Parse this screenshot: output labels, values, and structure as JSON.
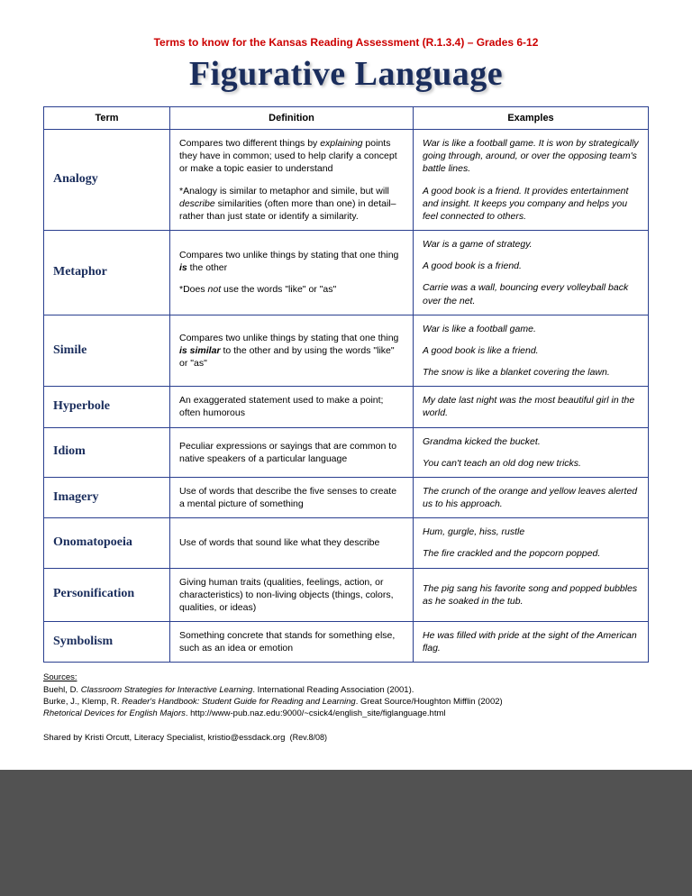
{
  "header_sub": "Terms to know for the Kansas Reading Assessment (R.1.3.4) – Grades 6-12",
  "main_title": "Figurative Language",
  "cols": {
    "term": "Term",
    "def": "Definition",
    "ex": "Examples"
  },
  "rows": [
    {
      "term": "Analogy",
      "def_html": "<p>Compares two different things by <span class='i'>explaining</span> points they have in common; used to help clarify a concept or make a topic easier to understand</p><p>*Analogy is similar to metaphor and simile, but will <span class='i'>describe</span> similarities (often more than one) in detail– rather than just state or identify a similarity.</p>",
      "ex_html": "<p>War is like a football game. It is won by strategically going through, around, or over the opposing team's battle lines.</p><p>A good book is a friend. It provides entertainment and insight. It keeps you company and helps you feel connected to others.</p>"
    },
    {
      "term": "Metaphor",
      "def_html": "<p>Compares two unlike things by stating that one thing <span class='i b'>is</span> the other</p><p>*Does <span class='i'>not</span> use the words \"like\" or \"as\"</p>",
      "ex_html": "<p>War is a game of strategy.</p><p>A good book is a friend.</p><p>Carrie was a wall, bouncing every volleyball back over the net.</p>"
    },
    {
      "term": "Simile",
      "def_html": "<p>Compares two unlike things by stating that one thing <span class='i b'>is similar</span> to the other and by using the words \"like\" or \"as\"</p>",
      "ex_html": "<p>War is like a football game.</p><p>A good book is like a friend.</p><p>The snow is like a blanket covering the lawn.</p>"
    },
    {
      "term": "Hyperbole",
      "def_html": "<p>An exaggerated statement used to make a point; often humorous</p>",
      "ex_html": "<p>My date last night was the most beautiful girl in the world.</p>"
    },
    {
      "term": "Idiom",
      "def_html": "<p>Peculiar expressions or sayings that are common to native speakers of a particular language</p>",
      "ex_html": "<p>Grandma kicked the bucket.</p><p>You can't teach an old dog new tricks.</p>"
    },
    {
      "term": "Imagery",
      "def_html": "<p>Use of words that describe the five senses to create a mental picture of something</p>",
      "ex_html": "<p>The crunch of the orange and yellow leaves alerted us to his approach.</p>"
    },
    {
      "term": "Onomatopoeia",
      "def_html": "<p>Use of words that sound like what they describe</p>",
      "ex_html": "<p>Hum, gurgle, hiss, rustle</p><p>The fire crackled and the popcorn popped.</p>"
    },
    {
      "term": "Personification",
      "def_html": "<p>Giving human traits (qualities, feelings, action, or characteristics) to non-living objects (things, colors, qualities, or ideas)</p>",
      "ex_html": "<p>The pig sang his favorite song and popped bubbles as he soaked in the tub.</p>"
    },
    {
      "term": "Symbolism",
      "def_html": "<p>Something concrete that stands for something else, such as an idea or emotion</p>",
      "ex_html": "<p>He was filled with pride at the sight of the American flag.</p>"
    }
  ],
  "sources_label": "Sources:",
  "sources_lines_html": [
    "Buehl, D.  <span class='i'>Classroom Strategies for Interactive Learning</span>. International Reading Association (2001).",
    "Burke, J., Klemp, R.  <span class='i'>Reader's Handbook: Student Guide for Reading and Learning</span>. Great Source/Houghton Mifflin (2002)",
    "<span class='i'>Rhetorical Devices for English Majors</span>. http://www-pub.naz.edu:9000/~csick4/english_site/figlanguage.html"
  ],
  "shared": "Shared by Kristi Orcutt, Literacy Specialist, kristio@essdack.org",
  "rev": "(Rev.8/08)"
}
